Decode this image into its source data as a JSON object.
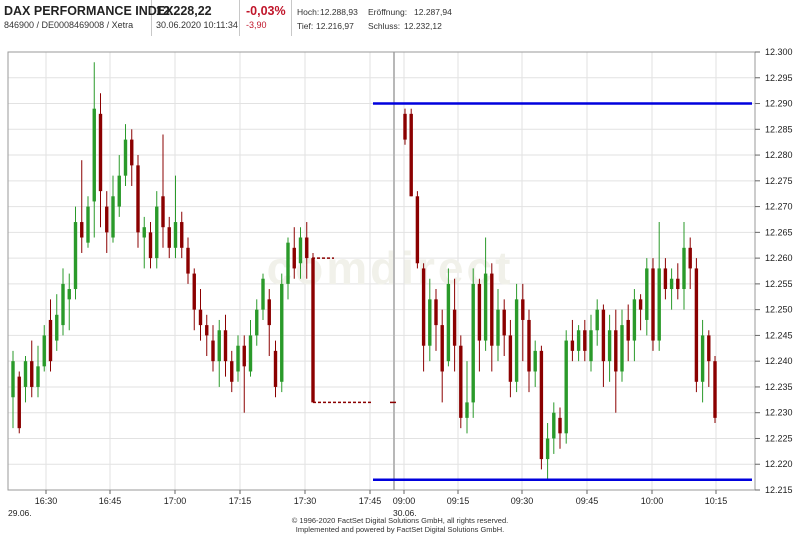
{
  "header": {
    "index_name": "DAX PERFORMANCE INDEX",
    "id_line": "846900 / DE0008469008 / Xetra",
    "last_price": "12.228,22",
    "datetime": "30.06.2020 10:11:34",
    "change_pct": "-0,03%",
    "change_abs": "-3,90",
    "high_label": "Hoch:",
    "high_value": "12.288,93",
    "open_label": "Eröffnung:",
    "open_value": "12.287,94",
    "low_label": "Tief:",
    "low_value": "12.216,97",
    "close_label": "Schluss:",
    "close_value": "12.232,12"
  },
  "watermark": "comdirect",
  "footer": {
    "copyright": "© 1996-2020 FactSet Digital Solutions GmbH, all rights reserved.",
    "powered": "Implemented and powered by FactSet Digital Solutions GmbH."
  },
  "colors": {
    "up": "#2a9a2a",
    "down": "#8b0000",
    "hline": "#0000dd",
    "grid": "#e2e2e2",
    "separator": "#b8b8b8"
  },
  "chart_data": {
    "type": "candlestick",
    "ylim": [
      12215,
      12300
    ],
    "y_ticks": [
      "12.215",
      "12.220",
      "12.225",
      "12.230",
      "12.235",
      "12.240",
      "12.245",
      "12.250",
      "12.255",
      "12.260",
      "12.265",
      "12.270",
      "12.275",
      "12.280",
      "12.285",
      "12.290",
      "12.295",
      "12.300"
    ],
    "x_ticks": [
      "16:30",
      "16:45",
      "17:00",
      "17:15",
      "17:30",
      "17:45",
      "09:00",
      "09:15",
      "09:30",
      "09:45",
      "10:00",
      "10:15"
    ],
    "date_labels": [
      "29.06.",
      "30.06."
    ],
    "day1": [
      [
        12233,
        12240,
        12227,
        12242
      ],
      [
        12237,
        12227,
        12226,
        12238
      ],
      [
        12235,
        12240,
        12232,
        12241
      ],
      [
        12240,
        12235,
        12233,
        12244
      ],
      [
        12235,
        12239,
        12233,
        12243
      ],
      [
        12239,
        12245,
        12238,
        12247
      ],
      [
        12248,
        12240,
        12238,
        12252
      ],
      [
        12244,
        12249,
        12242,
        12253
      ],
      [
        12247,
        12255,
        12245,
        12258
      ],
      [
        12252,
        12254,
        12246,
        12257
      ],
      [
        12254,
        12267,
        12252,
        12270
      ],
      [
        12267,
        12264,
        12261,
        12279
      ],
      [
        12263,
        12270,
        12262,
        12272
      ],
      [
        12271,
        12289,
        12264,
        12298
      ],
      [
        12288,
        12273,
        12266,
        12292
      ],
      [
        12270,
        12265,
        12261,
        12273
      ],
      [
        12264,
        12272,
        12263,
        12276
      ],
      [
        12270,
        12276,
        12268,
        12280
      ],
      [
        12276,
        12283,
        12274,
        12286
      ],
      [
        12283,
        12278,
        12274,
        12285
      ],
      [
        12278,
        12265,
        12262,
        12280
      ],
      [
        12264,
        12266,
        12258,
        12268
      ],
      [
        12265,
        12260,
        12258,
        12267
      ],
      [
        12260,
        12270,
        12258,
        12273
      ],
      [
        12272,
        12266,
        12262,
        12284
      ],
      [
        12266,
        12262,
        12260,
        12268
      ],
      [
        12262,
        12267,
        12260,
        12276
      ],
      [
        12267,
        12262,
        12260,
        12269
      ],
      [
        12262,
        12257,
        12255,
        12264
      ],
      [
        12257,
        12250,
        12246,
        12258
      ],
      [
        12250,
        12247,
        12244,
        12254
      ],
      [
        12247,
        12245,
        12241,
        12249
      ],
      [
        12244,
        12240,
        12238,
        12247
      ],
      [
        12240,
        12246,
        12235,
        12248
      ],
      [
        12246,
        12240,
        12237,
        12249
      ],
      [
        12240,
        12236,
        12234,
        12242
      ],
      [
        12238,
        12243,
        12236,
        12245
      ],
      [
        12243,
        12239,
        12230,
        12245
      ],
      [
        12238,
        12245,
        12237,
        12248
      ],
      [
        12245,
        12250,
        12243,
        12252
      ],
      [
        12250,
        12256,
        12248,
        12257
      ],
      [
        12252,
        12247,
        12241,
        12254
      ],
      [
        12242,
        12235,
        12233,
        12244
      ],
      [
        12236,
        12255,
        12234,
        12257
      ],
      [
        12255,
        12263,
        12252,
        12264
      ],
      [
        12262,
        12258,
        12256,
        12266
      ],
      [
        12259,
        12264,
        12256,
        12266
      ],
      [
        12264,
        12260,
        12256,
        12267
      ],
      [
        12260,
        12232,
        12232,
        12261
      ]
    ],
    "gap_level_day1": 12232,
    "day2": [
      [
        12288,
        12283,
        12282,
        12289
      ],
      [
        12288,
        12272,
        12272,
        12289
      ],
      [
        12272,
        12259,
        12258,
        12273
      ],
      [
        12258,
        12243,
        12238,
        12259
      ],
      [
        12243,
        12252,
        12240,
        12256
      ],
      [
        12252,
        12247,
        12242,
        12254
      ],
      [
        12247,
        12238,
        12232,
        12250
      ],
      [
        12240,
        12255,
        12239,
        12258
      ],
      [
        12250,
        12243,
        12238,
        12256
      ],
      [
        12243,
        12229,
        12227,
        12245
      ],
      [
        12229,
        12232,
        12226,
        12240
      ],
      [
        12232,
        12255,
        12229,
        12258
      ],
      [
        12255,
        12244,
        12238,
        12256
      ],
      [
        12244,
        12257,
        12242,
        12264
      ],
      [
        12257,
        12243,
        12238,
        12259
      ],
      [
        12243,
        12250,
        12240,
        12254
      ],
      [
        12250,
        12245,
        12241,
        12252
      ],
      [
        12245,
        12236,
        12233,
        12248
      ],
      [
        12236,
        12252,
        12234,
        12255
      ],
      [
        12252,
        12248,
        12240,
        12255
      ],
      [
        12248,
        12238,
        12234,
        12250
      ],
      [
        12238,
        12242,
        12235,
        12244
      ],
      [
        12242,
        12221,
        12219,
        12243
      ],
      [
        12221,
        12225,
        12217,
        12228
      ],
      [
        12225,
        12230,
        12222,
        12232
      ],
      [
        12229,
        12226,
        12223,
        12231
      ],
      [
        12226,
        12244,
        12224,
        12246
      ],
      [
        12244,
        12242,
        12240,
        12248
      ],
      [
        12242,
        12246,
        12240,
        12247
      ],
      [
        12246,
        12242,
        12240,
        12248
      ],
      [
        12240,
        12246,
        12238,
        12249
      ],
      [
        12246,
        12250,
        12243,
        12252
      ],
      [
        12250,
        12240,
        12235,
        12251
      ],
      [
        12240,
        12246,
        12236,
        12249
      ],
      [
        12246,
        12238,
        12230,
        12250
      ],
      [
        12238,
        12247,
        12236,
        12250
      ],
      [
        12248,
        12244,
        12240,
        12251
      ],
      [
        12244,
        12252,
        12240,
        12254
      ],
      [
        12252,
        12250,
        12246,
        12253
      ],
      [
        12248,
        12258,
        12245,
        12260
      ],
      [
        12258,
        12244,
        12242,
        12260
      ],
      [
        12244,
        12258,
        12242,
        12267
      ],
      [
        12258,
        12254,
        12252,
        12260
      ],
      [
        12254,
        12256,
        12250,
        12258
      ],
      [
        12256,
        12254,
        12252,
        12259
      ],
      [
        12254,
        12262,
        12250,
        12267
      ],
      [
        12262,
        12258,
        12254,
        12264
      ],
      [
        12258,
        12236,
        12234,
        12260
      ],
      [
        12236,
        12245,
        12232,
        12248
      ],
      [
        12245,
        12240,
        12235,
        12246
      ],
      [
        12240,
        12229,
        12228,
        12241
      ]
    ],
    "resistance": 12290,
    "support": 12217
  }
}
